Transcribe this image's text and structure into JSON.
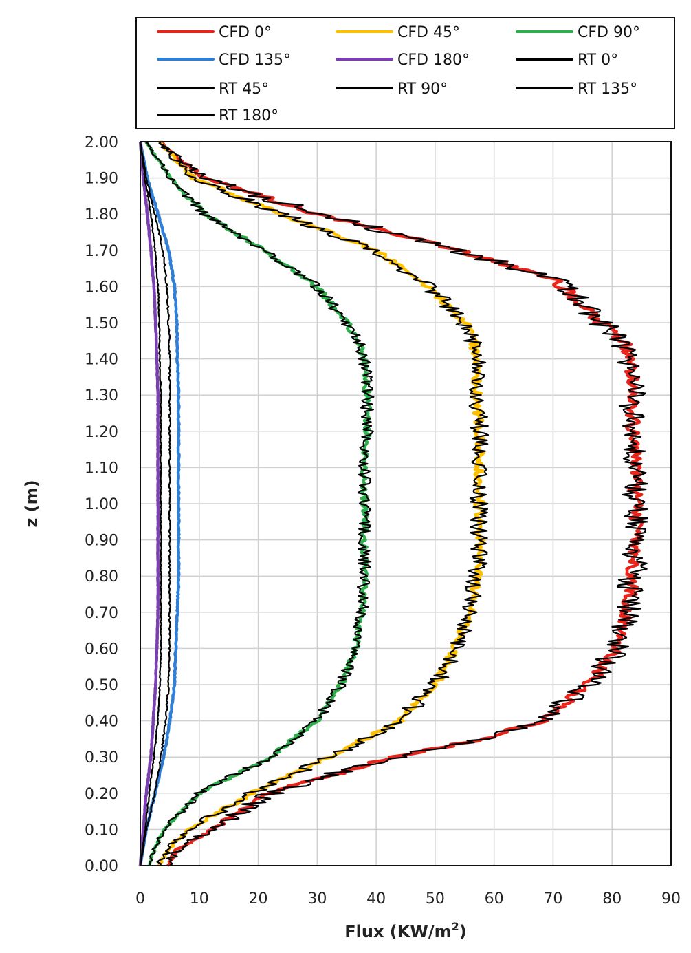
{
  "chart_data": {
    "type": "line",
    "xlabel": "Flux (KW/m",
    "xlabel_sup": "2",
    "xlabel_end": ")",
    "ylabel": "z (m)",
    "xlim": [
      0,
      90
    ],
    "ylim": [
      0,
      2
    ],
    "x_ticks": [
      "0",
      "10",
      "20",
      "30",
      "40",
      "50",
      "60",
      "70",
      "80",
      "90"
    ],
    "y_ticks": [
      "0.00",
      "0.10",
      "0.20",
      "0.30",
      "0.40",
      "0.50",
      "0.60",
      "0.70",
      "0.80",
      "0.90",
      "1.00",
      "1.10",
      "1.20",
      "1.30",
      "1.40",
      "1.50",
      "1.60",
      "1.70",
      "1.80",
      "1.90",
      "2.00"
    ],
    "grid": true,
    "legend_position": "top",
    "series": [
      {
        "name": "CFD 0°",
        "color": "#e8241b",
        "profile": [
          [
            0,
            4.5
          ],
          [
            0.04,
            6
          ],
          [
            0.1,
            12
          ],
          [
            0.2,
            22
          ],
          [
            0.3,
            43
          ],
          [
            0.35,
            58
          ],
          [
            0.4,
            68
          ],
          [
            0.5,
            76
          ],
          [
            0.6,
            81
          ],
          [
            0.7,
            82.5
          ],
          [
            0.8,
            83.5
          ],
          [
            0.9,
            84
          ],
          [
            1.0,
            84
          ],
          [
            1.1,
            84
          ],
          [
            1.2,
            83.5
          ],
          [
            1.3,
            83.5
          ],
          [
            1.4,
            83
          ],
          [
            1.45,
            82
          ],
          [
            1.5,
            78
          ],
          [
            1.58,
            73
          ],
          [
            1.62,
            70
          ],
          [
            1.68,
            58
          ],
          [
            1.74,
            45
          ],
          [
            1.8,
            30
          ],
          [
            1.9,
            11
          ],
          [
            1.96,
            6
          ],
          [
            2.0,
            3.5
          ]
        ]
      },
      {
        "name": "CFD 45°",
        "color": "#ffc000",
        "profile": [
          [
            0,
            3
          ],
          [
            0.05,
            5
          ],
          [
            0.1,
            8
          ],
          [
            0.2,
            19
          ],
          [
            0.3,
            32
          ],
          [
            0.4,
            44
          ],
          [
            0.5,
            50
          ],
          [
            0.6,
            53.5
          ],
          [
            0.7,
            56
          ],
          [
            0.8,
            57
          ],
          [
            0.9,
            57.5
          ],
          [
            1.0,
            57.5
          ],
          [
            1.1,
            57.5
          ],
          [
            1.2,
            57.5
          ],
          [
            1.3,
            57
          ],
          [
            1.4,
            57
          ],
          [
            1.45,
            56.5
          ],
          [
            1.5,
            55
          ],
          [
            1.6,
            49
          ],
          [
            1.7,
            40
          ],
          [
            1.8,
            24
          ],
          [
            1.9,
            9
          ],
          [
            2.0,
            3
          ]
        ]
      },
      {
        "name": "CFD 90°",
        "color": "#2db04b",
        "profile": [
          [
            0,
            1.5
          ],
          [
            0.05,
            2.5
          ],
          [
            0.1,
            4
          ],
          [
            0.2,
            10
          ],
          [
            0.3,
            22
          ],
          [
            0.4,
            30
          ],
          [
            0.5,
            34
          ],
          [
            0.6,
            36.5
          ],
          [
            0.7,
            37.5
          ],
          [
            0.8,
            38
          ],
          [
            0.9,
            38
          ],
          [
            1.0,
            38
          ],
          [
            1.1,
            38
          ],
          [
            1.2,
            38.5
          ],
          [
            1.3,
            38.5
          ],
          [
            1.4,
            38
          ],
          [
            1.45,
            37
          ],
          [
            1.5,
            35
          ],
          [
            1.6,
            30
          ],
          [
            1.7,
            21
          ],
          [
            1.8,
            11
          ],
          [
            1.9,
            5
          ],
          [
            2.0,
            1
          ]
        ]
      },
      {
        "name": "CFD 135°",
        "color": "#2f7fd6",
        "profile": [
          [
            0,
            0
          ],
          [
            0.1,
            1
          ],
          [
            0.2,
            2.5
          ],
          [
            0.3,
            4
          ],
          [
            0.4,
            5
          ],
          [
            0.5,
            5.8
          ],
          [
            0.6,
            6
          ],
          [
            0.7,
            6.3
          ],
          [
            0.8,
            6.5
          ],
          [
            0.9,
            6.5
          ],
          [
            1.0,
            6.5
          ],
          [
            1.1,
            6.5
          ],
          [
            1.2,
            6.5
          ],
          [
            1.3,
            6.5
          ],
          [
            1.4,
            6.3
          ],
          [
            1.5,
            6.2
          ],
          [
            1.6,
            5.8
          ],
          [
            1.7,
            4.8
          ],
          [
            1.8,
            3
          ],
          [
            1.9,
            1.2
          ],
          [
            2.0,
            0
          ]
        ]
      },
      {
        "name": "CFD 180°",
        "color": "#7a3fb0",
        "profile": [
          [
            0,
            0
          ],
          [
            0.1,
            0.5
          ],
          [
            0.2,
            1
          ],
          [
            0.3,
            1.8
          ],
          [
            0.4,
            2.2
          ],
          [
            0.5,
            2.6
          ],
          [
            0.6,
            2.8
          ],
          [
            0.7,
            3
          ],
          [
            0.8,
            3
          ],
          [
            0.9,
            3
          ],
          [
            1.0,
            3
          ],
          [
            1.1,
            3
          ],
          [
            1.2,
            3
          ],
          [
            1.3,
            3
          ],
          [
            1.4,
            2.8
          ],
          [
            1.5,
            2.6
          ],
          [
            1.6,
            2.3
          ],
          [
            1.7,
            1.8
          ],
          [
            1.8,
            1.2
          ],
          [
            1.9,
            0.5
          ],
          [
            2.0,
            0
          ]
        ]
      },
      {
        "name": "RT 0°",
        "color": "#000000",
        "profile": [
          [
            0,
            4.5
          ],
          [
            0.04,
            6
          ],
          [
            0.1,
            12
          ],
          [
            0.2,
            22
          ],
          [
            0.3,
            43
          ],
          [
            0.35,
            58
          ],
          [
            0.4,
            68
          ],
          [
            0.5,
            76
          ],
          [
            0.6,
            81
          ],
          [
            0.7,
            82.5
          ],
          [
            0.8,
            83.5
          ],
          [
            0.9,
            84
          ],
          [
            1.0,
            84
          ],
          [
            1.1,
            84
          ],
          [
            1.2,
            83.5
          ],
          [
            1.3,
            83.5
          ],
          [
            1.4,
            83
          ],
          [
            1.45,
            82
          ],
          [
            1.5,
            78
          ],
          [
            1.58,
            73
          ],
          [
            1.62,
            70
          ],
          [
            1.68,
            58
          ],
          [
            1.74,
            45
          ],
          [
            1.8,
            30
          ],
          [
            1.9,
            11
          ],
          [
            1.96,
            6
          ],
          [
            2.0,
            3.5
          ]
        ]
      },
      {
        "name": "RT 45°",
        "color": "#000000",
        "profile": [
          [
            0,
            3
          ],
          [
            0.05,
            5
          ],
          [
            0.1,
            8
          ],
          [
            0.2,
            19
          ],
          [
            0.3,
            32
          ],
          [
            0.4,
            44
          ],
          [
            0.5,
            50
          ],
          [
            0.6,
            53.5
          ],
          [
            0.7,
            56
          ],
          [
            0.8,
            57
          ],
          [
            0.9,
            57.5
          ],
          [
            1.0,
            57.5
          ],
          [
            1.1,
            57.5
          ],
          [
            1.2,
            57.5
          ],
          [
            1.3,
            57
          ],
          [
            1.4,
            57
          ],
          [
            1.45,
            56.5
          ],
          [
            1.5,
            55
          ],
          [
            1.6,
            49
          ],
          [
            1.7,
            40
          ],
          [
            1.8,
            24
          ],
          [
            1.9,
            9
          ],
          [
            2.0,
            3
          ]
        ]
      },
      {
        "name": "RT 90°",
        "color": "#000000",
        "profile": [
          [
            0,
            1.5
          ],
          [
            0.05,
            2.5
          ],
          [
            0.1,
            4
          ],
          [
            0.2,
            10
          ],
          [
            0.3,
            22
          ],
          [
            0.4,
            30
          ],
          [
            0.5,
            34
          ],
          [
            0.6,
            36.5
          ],
          [
            0.7,
            37.5
          ],
          [
            0.8,
            38
          ],
          [
            0.9,
            38
          ],
          [
            1.0,
            38
          ],
          [
            1.1,
            38
          ],
          [
            1.2,
            38.5
          ],
          [
            1.3,
            38.5
          ],
          [
            1.4,
            38
          ],
          [
            1.45,
            37
          ],
          [
            1.5,
            35
          ],
          [
            1.6,
            30
          ],
          [
            1.7,
            21
          ],
          [
            1.8,
            11
          ],
          [
            1.9,
            5
          ],
          [
            2.0,
            1
          ]
        ]
      },
      {
        "name": "RT 135°",
        "color": "#000000",
        "profile": [
          [
            0,
            0
          ],
          [
            0.1,
            1
          ],
          [
            0.2,
            2.5
          ],
          [
            0.3,
            3.5
          ],
          [
            0.4,
            4.3
          ],
          [
            0.5,
            4.8
          ],
          [
            0.6,
            5
          ],
          [
            0.7,
            5
          ],
          [
            0.8,
            5
          ],
          [
            0.9,
            5
          ],
          [
            1.0,
            5
          ],
          [
            1.1,
            5
          ],
          [
            1.2,
            5
          ],
          [
            1.3,
            5
          ],
          [
            1.4,
            5
          ],
          [
            1.5,
            4.8
          ],
          [
            1.6,
            4.5
          ],
          [
            1.7,
            3.8
          ],
          [
            1.8,
            2.5
          ],
          [
            1.9,
            1
          ],
          [
            2.0,
            0
          ]
        ]
      },
      {
        "name": "RT 180°",
        "color": "#000000",
        "profile": [
          [
            0,
            0
          ],
          [
            0.1,
            0.8
          ],
          [
            0.2,
            1.5
          ],
          [
            0.3,
            2.3
          ],
          [
            0.4,
            3
          ],
          [
            0.5,
            3.3
          ],
          [
            0.6,
            3.5
          ],
          [
            0.7,
            3.5
          ],
          [
            0.8,
            3.5
          ],
          [
            0.9,
            3.5
          ],
          [
            1.0,
            3.5
          ],
          [
            1.1,
            3.5
          ],
          [
            1.2,
            3.5
          ],
          [
            1.3,
            3.5
          ],
          [
            1.4,
            3.3
          ],
          [
            1.5,
            3.2
          ],
          [
            1.6,
            3
          ],
          [
            1.7,
            2.5
          ],
          [
            1.8,
            1.8
          ],
          [
            1.9,
            0.8
          ],
          [
            2.0,
            0
          ]
        ]
      }
    ]
  }
}
